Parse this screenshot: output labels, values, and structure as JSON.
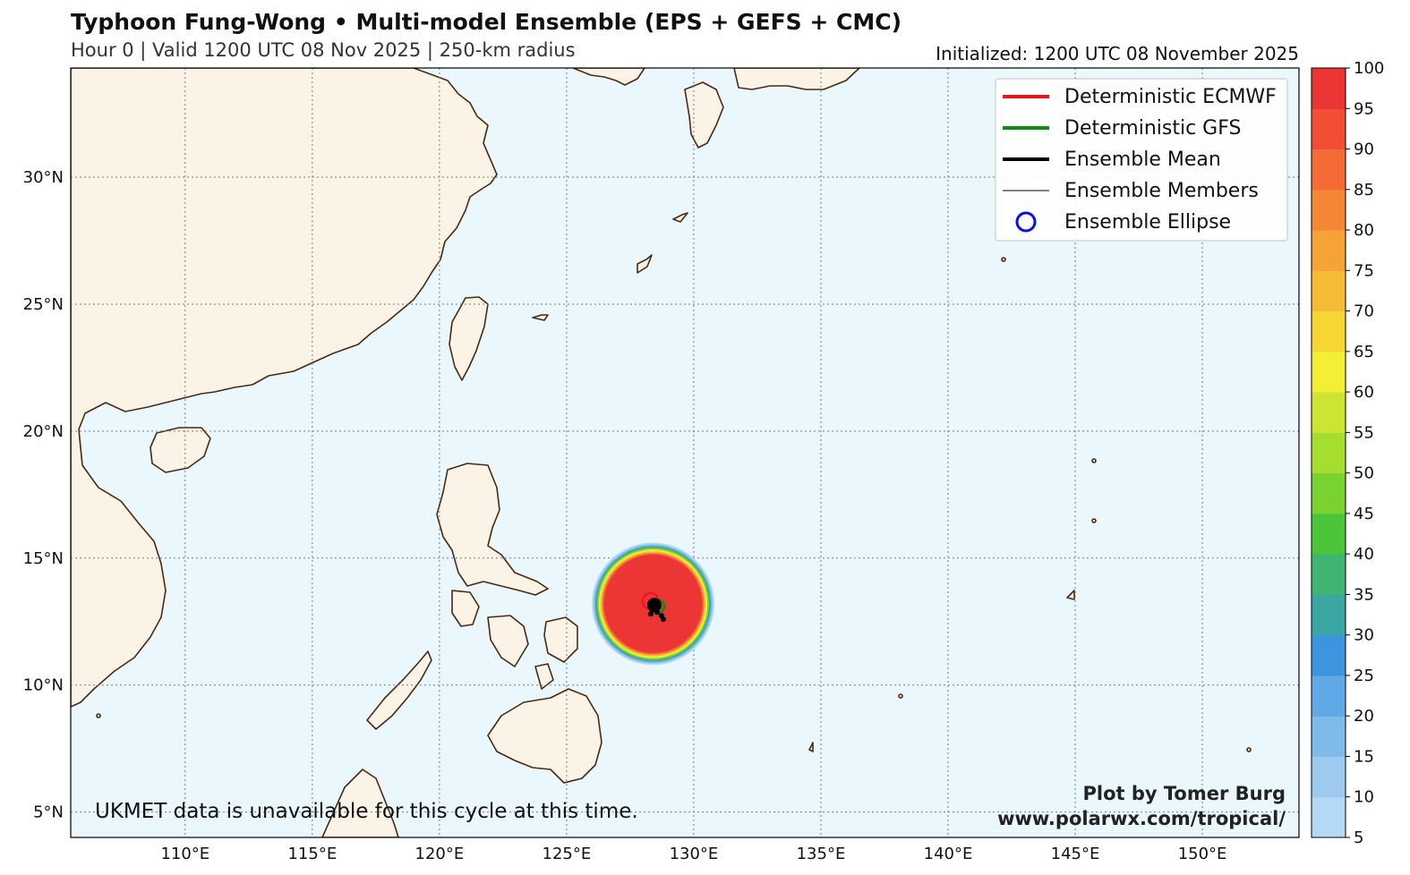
{
  "header": {
    "title": "Typhoon Fung-Wong • Multi-model Ensemble (EPS + GEFS + CMC)",
    "subtitle": "Hour 0 | Valid 1200 UTC 08 Nov 2025 | 250-km radius",
    "initialized": "Initialized: 1200 UTC 08 November 2025"
  },
  "map": {
    "lon_range": [
      105.5,
      153.8
    ],
    "lat_range": [
      4.0,
      34.3
    ],
    "colors": {
      "ocean": "#eaf8fd",
      "land": "#fbf3e6",
      "coast": "#4a2a10",
      "grid": "#6f7f7f"
    },
    "lon_ticks": [
      {
        "lon": 110,
        "label": "110°E"
      },
      {
        "lon": 115,
        "label": "115°E"
      },
      {
        "lon": 120,
        "label": "120°E"
      },
      {
        "lon": 125,
        "label": "125°E"
      },
      {
        "lon": 130,
        "label": "130°E"
      },
      {
        "lon": 135,
        "label": "135°E"
      },
      {
        "lon": 140,
        "label": "140°E"
      },
      {
        "lon": 145,
        "label": "145°E"
      },
      {
        "lon": 150,
        "label": "150°E"
      }
    ],
    "lat_ticks": [
      {
        "lat": 5,
        "label": "5°N"
      },
      {
        "lat": 10,
        "label": "10°N"
      },
      {
        "lat": 15,
        "label": "15°N"
      },
      {
        "lat": 20,
        "label": "20°N"
      },
      {
        "lat": 25,
        "label": "25°N"
      },
      {
        "lat": 30,
        "label": "30°N"
      }
    ],
    "storm": {
      "center_lon": 128.4,
      "center_lat": 13.2,
      "radius_km": 250,
      "ecmwf": {
        "lon": 128.3,
        "lat": 13.3
      },
      "gfs": {
        "lon": 128.6,
        "lat": 13.1
      },
      "ensemble_mean": {
        "lon": 128.45,
        "lat": 13.15
      }
    }
  },
  "legend": {
    "items": [
      {
        "label": "Deterministic ECMWF",
        "color": "#e8141b",
        "kind": "thick-line"
      },
      {
        "label": "Deterministic GFS",
        "color": "#138a13",
        "kind": "thick-line"
      },
      {
        "label": "Ensemble Mean",
        "color": "#000000",
        "kind": "thick-line"
      },
      {
        "label": "Ensemble Members",
        "color": "#000000",
        "kind": "thin-line"
      },
      {
        "label": "Ensemble Ellipse",
        "color": "#0a10e0",
        "kind": "circle"
      }
    ]
  },
  "note": "UKMET data is unavailable for this cycle at this time.",
  "credit": {
    "line1": "Plot by Tomer Burg",
    "line2": "www.polarwx.com/tropical/"
  },
  "colorbar": {
    "min": 5,
    "max": 100,
    "labels": [
      "5",
      "10",
      "15",
      "20",
      "25",
      "30",
      "35",
      "40",
      "45",
      "50",
      "55",
      "60",
      "65",
      "70",
      "75",
      "80",
      "85",
      "90",
      "95",
      "100"
    ],
    "colors": [
      "#cfe6f7",
      "#b4d9f4",
      "#9ccbef",
      "#7fbbea",
      "#5fa9e5",
      "#3d96dd",
      "#3aa7a3",
      "#3fb571",
      "#4cc43a",
      "#79d231",
      "#a6de30",
      "#cde432",
      "#f3ef35",
      "#f6d632",
      "#f6bb34",
      "#f5a236",
      "#f58636",
      "#f46b35",
      "#f14e35",
      "#ec3535"
    ]
  }
}
